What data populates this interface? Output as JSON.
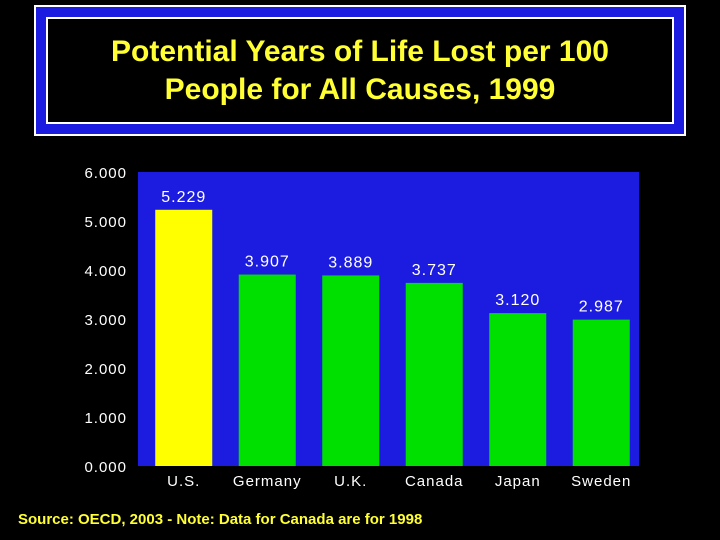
{
  "title": {
    "line1": "Potential Years of Life Lost per 100",
    "line2": "People for All Causes, 1999"
  },
  "source_note": "Source: OECD, 2003 - Note: Data for Canada are for 1998",
  "colors": {
    "background": "#000000",
    "plot_background": "#1c1ce0",
    "title_text": "#ffff33",
    "highlight_bar": "#ffff00",
    "bar": "#00e000",
    "axis_text": "#ffffff"
  },
  "chart_data": {
    "type": "bar",
    "title": "Potential Years of Life Lost per 100 People for All Causes, 1999",
    "xlabel": "",
    "ylabel": "",
    "categories": [
      "U.S.",
      "Germany",
      "U.K.",
      "Canada",
      "Japan",
      "Sweden"
    ],
    "values": [
      5.229,
      3.907,
      3.889,
      3.737,
      3.12,
      2.987
    ],
    "value_labels": [
      "5.229",
      "3.907",
      "3.889",
      "3.737",
      "3.120",
      "2.987"
    ],
    "ylim": [
      0,
      6
    ],
    "yticks": [
      0,
      1,
      2,
      3,
      4,
      5,
      6
    ],
    "ytick_labels": [
      "0.000",
      "1.000",
      "2.000",
      "3.000",
      "4.000",
      "5.000",
      "6.000"
    ],
    "highlight_category": "U.S.",
    "grid": false,
    "legend": "none"
  }
}
